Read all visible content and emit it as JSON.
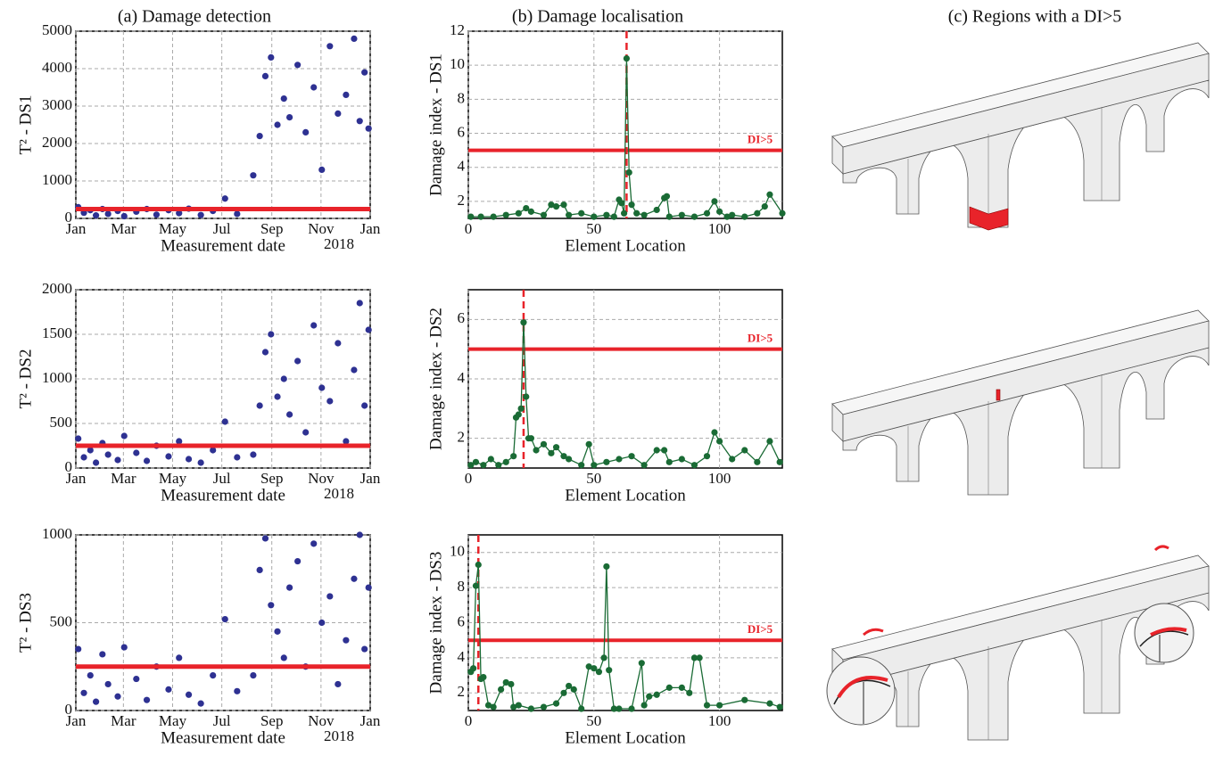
{
  "column_titles": [
    "(a) Damage detection",
    "(b) Damage localisation",
    "(c) Regions with a DI>5"
  ],
  "chart_data": [
    {
      "type": "scatter",
      "ylabel": "T² - DS1",
      "xlabel": "Measurement date",
      "annotation": "2018",
      "color": "#2e3192",
      "threshold": 250,
      "threshold_color": "#e8232a",
      "grid": true,
      "xlim": [
        0,
        365
      ],
      "xticks": [
        {
          "value": 0,
          "label": "Jan"
        },
        {
          "value": 59,
          "label": "Mar"
        },
        {
          "value": 120,
          "label": "May"
        },
        {
          "value": 181,
          "label": "Jul"
        },
        {
          "value": 243,
          "label": "Sep"
        },
        {
          "value": 304,
          "label": "Nov"
        },
        {
          "value": 365,
          "label": "Jan"
        }
      ],
      "ylim": [
        0,
        5000
      ],
      "yticks": [
        0,
        1000,
        2000,
        3000,
        4000,
        5000
      ],
      "x": [
        3,
        10,
        18,
        25,
        33,
        40,
        52,
        60,
        75,
        88,
        100,
        115,
        128,
        140,
        155,
        170,
        185,
        200,
        220,
        228,
        235,
        242,
        250,
        258,
        265,
        275,
        285,
        295,
        305,
        315,
        325,
        335,
        345,
        352,
        358,
        363
      ],
      "values": [
        300,
        150,
        220,
        80,
        250,
        120,
        200,
        60,
        180,
        250,
        100,
        220,
        140,
        260,
        90,
        200,
        530,
        120,
        1150,
        2200,
        3800,
        4300,
        2500,
        3200,
        2700,
        4100,
        2300,
        3500,
        1300,
        4600,
        2800,
        3300,
        4800,
        2600,
        3900,
        2400
      ]
    },
    {
      "type": "line",
      "ylabel": "Damage index - DS1",
      "xlabel": "Element Location",
      "color": "#1a6b35",
      "threshold": 5,
      "threshold_label": "DI>5",
      "threshold_color": "#e8232a",
      "damage_location": 63,
      "grid": true,
      "xlim": [
        0,
        125
      ],
      "xticks": [
        0,
        50,
        100
      ],
      "ylim": [
        1,
        12
      ],
      "yticks": [
        2,
        4,
        6,
        8,
        10,
        12
      ],
      "x": [
        1,
        5,
        10,
        15,
        20,
        23,
        25,
        30,
        33,
        35,
        38,
        40,
        45,
        50,
        55,
        58,
        60,
        61,
        62,
        63,
        64,
        65,
        67,
        70,
        75,
        78,
        79,
        80,
        85,
        90,
        95,
        98,
        100,
        103,
        105,
        110,
        115,
        118,
        120,
        125
      ],
      "values": [
        1.1,
        1.1,
        1.1,
        1.2,
        1.3,
        1.6,
        1.4,
        1.2,
        1.8,
        1.7,
        1.8,
        1.2,
        1.3,
        1.1,
        1.2,
        1.1,
        2.1,
        1.9,
        1.3,
        10.4,
        3.7,
        1.8,
        1.3,
        1.2,
        1.5,
        2.2,
        2.3,
        1.1,
        1.2,
        1.1,
        1.3,
        2.0,
        1.4,
        1.1,
        1.2,
        1.1,
        1.3,
        1.7,
        2.4,
        1.3
      ]
    },
    {
      "type": "scatter",
      "ylabel": "T² - DS2",
      "xlabel": "Measurement date",
      "annotation": "2018",
      "color": "#2e3192",
      "threshold": 250,
      "threshold_color": "#e8232a",
      "grid": true,
      "xlim": [
        0,
        365
      ],
      "xticks": [
        {
          "value": 0,
          "label": "Jan"
        },
        {
          "value": 59,
          "label": "Mar"
        },
        {
          "value": 120,
          "label": "May"
        },
        {
          "value": 181,
          "label": "Jul"
        },
        {
          "value": 243,
          "label": "Sep"
        },
        {
          "value": 304,
          "label": "Nov"
        },
        {
          "value": 365,
          "label": "Jan"
        }
      ],
      "ylim": [
        0,
        2000
      ],
      "yticks": [
        0,
        500,
        1000,
        1500,
        2000
      ],
      "x": [
        3,
        10,
        18,
        25,
        33,
        40,
        52,
        60,
        75,
        88,
        100,
        115,
        128,
        140,
        155,
        170,
        185,
        200,
        220,
        228,
        235,
        242,
        250,
        258,
        265,
        275,
        285,
        295,
        305,
        315,
        325,
        335,
        345,
        352,
        358,
        363
      ],
      "values": [
        330,
        120,
        200,
        60,
        280,
        150,
        90,
        360,
        170,
        80,
        250,
        130,
        300,
        100,
        60,
        200,
        520,
        120,
        150,
        700,
        1300,
        1500,
        800,
        1000,
        600,
        1200,
        400,
        1600,
        900,
        750,
        1400,
        300,
        1100,
        1850,
        700,
        1550
      ]
    },
    {
      "type": "line",
      "ylabel": "Damage index - DS2",
      "xlabel": "Element Location",
      "color": "#1a6b35",
      "threshold": 5,
      "threshold_label": "DI>5",
      "threshold_color": "#e8232a",
      "damage_location": 22,
      "grid": true,
      "xlim": [
        0,
        125
      ],
      "xticks": [
        0,
        50,
        100
      ],
      "ylim": [
        1,
        7
      ],
      "yticks": [
        2,
        4,
        6
      ],
      "x": [
        1,
        3,
        6,
        9,
        12,
        15,
        18,
        19,
        20,
        21,
        22,
        23,
        24,
        25,
        27,
        30,
        33,
        35,
        38,
        40,
        45,
        48,
        50,
        55,
        60,
        65,
        70,
        75,
        78,
        80,
        85,
        90,
        95,
        98,
        100,
        105,
        110,
        115,
        120,
        124
      ],
      "values": [
        1.1,
        1.2,
        1.1,
        1.3,
        1.1,
        1.2,
        1.4,
        2.7,
        2.8,
        3.0,
        5.9,
        3.4,
        2.0,
        2.0,
        1.6,
        1.8,
        1.5,
        1.7,
        1.4,
        1.3,
        1.1,
        1.8,
        1.1,
        1.2,
        1.3,
        1.4,
        1.1,
        1.6,
        1.6,
        1.2,
        1.3,
        1.1,
        1.4,
        2.2,
        1.9,
        1.3,
        1.6,
        1.2,
        1.9,
        1.2
      ]
    },
    {
      "type": "scatter",
      "ylabel": "T² - DS3",
      "xlabel": "Measurement date",
      "annotation": "2018",
      "color": "#2e3192",
      "threshold": 250,
      "threshold_color": "#e8232a",
      "grid": true,
      "xlim": [
        0,
        365
      ],
      "xticks": [
        {
          "value": 0,
          "label": "Jan"
        },
        {
          "value": 59,
          "label": "Mar"
        },
        {
          "value": 120,
          "label": "May"
        },
        {
          "value": 181,
          "label": "Jul"
        },
        {
          "value": 243,
          "label": "Sep"
        },
        {
          "value": 304,
          "label": "Nov"
        },
        {
          "value": 365,
          "label": "Jan"
        }
      ],
      "ylim": [
        0,
        1000
      ],
      "yticks": [
        0,
        500,
        1000
      ],
      "x": [
        3,
        10,
        18,
        25,
        33,
        40,
        52,
        60,
        75,
        88,
        100,
        115,
        128,
        140,
        155,
        170,
        185,
        200,
        220,
        228,
        235,
        242,
        250,
        258,
        265,
        275,
        285,
        295,
        305,
        315,
        325,
        335,
        345,
        352,
        358,
        363
      ],
      "values": [
        350,
        100,
        200,
        50,
        320,
        150,
        80,
        360,
        180,
        60,
        250,
        120,
        300,
        90,
        40,
        200,
        520,
        110,
        200,
        800,
        980,
        600,
        450,
        300,
        700,
        850,
        250,
        950,
        500,
        650,
        150,
        400,
        750,
        1000,
        350,
        700
      ]
    },
    {
      "type": "line",
      "ylabel": "Damage index - DS3",
      "xlabel": "Element Location",
      "color": "#1a6b35",
      "threshold": 5,
      "threshold_label": "DI>5",
      "threshold_color": "#e8232a",
      "damage_location": 4,
      "grid": true,
      "xlim": [
        0,
        125
      ],
      "xticks": [
        0,
        50,
        100
      ],
      "ylim": [
        1,
        11
      ],
      "yticks": [
        2,
        4,
        6,
        8,
        10
      ],
      "x": [
        1,
        2,
        3,
        4,
        5,
        6,
        8,
        10,
        13,
        15,
        17,
        18,
        20,
        25,
        30,
        35,
        38,
        40,
        42,
        45,
        48,
        50,
        52,
        54,
        55,
        56,
        58,
        60,
        65,
        69,
        70,
        72,
        75,
        80,
        85,
        88,
        90,
        92,
        95,
        100,
        110,
        120,
        124
      ],
      "values": [
        3.2,
        3.4,
        8.1,
        9.3,
        2.8,
        2.9,
        1.3,
        1.2,
        2.2,
        2.6,
        2.5,
        1.2,
        1.3,
        1.1,
        1.2,
        1.4,
        2.0,
        2.4,
        2.2,
        1.1,
        3.5,
        3.4,
        3.2,
        4.0,
        9.2,
        3.3,
        1.1,
        1.1,
        1.1,
        3.7,
        1.3,
        1.8,
        1.9,
        2.3,
        2.3,
        2.0,
        4.0,
        4.0,
        1.3,
        1.3,
        1.6,
        1.4,
        1.2
      ]
    }
  ]
}
